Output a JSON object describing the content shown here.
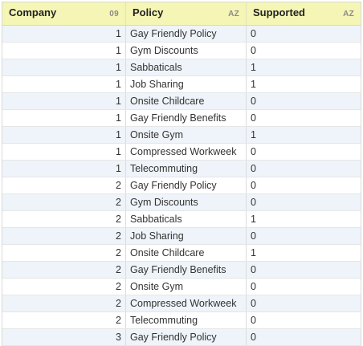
{
  "columns": [
    {
      "label": "Company",
      "type_badge": "09"
    },
    {
      "label": "Policy",
      "type_badge": "AZ"
    },
    {
      "label": "Supported",
      "type_badge": "AZ"
    }
  ],
  "rows": [
    {
      "company": "1",
      "policy": "Gay Friendly Policy",
      "supported": "0"
    },
    {
      "company": "1",
      "policy": "Gym Discounts",
      "supported": "0"
    },
    {
      "company": "1",
      "policy": "Sabbaticals",
      "supported": "1"
    },
    {
      "company": "1",
      "policy": "Job Sharing",
      "supported": "1"
    },
    {
      "company": "1",
      "policy": "Onsite Childcare",
      "supported": "0"
    },
    {
      "company": "1",
      "policy": "Gay Friendly Benefits",
      "supported": "0"
    },
    {
      "company": "1",
      "policy": "Onsite Gym",
      "supported": "1"
    },
    {
      "company": "1",
      "policy": "Compressed Workweek",
      "supported": "0"
    },
    {
      "company": "1",
      "policy": "Telecommuting",
      "supported": "0"
    },
    {
      "company": "2",
      "policy": "Gay Friendly Policy",
      "supported": "0"
    },
    {
      "company": "2",
      "policy": "Gym Discounts",
      "supported": "0"
    },
    {
      "company": "2",
      "policy": "Sabbaticals",
      "supported": "1"
    },
    {
      "company": "2",
      "policy": "Job Sharing",
      "supported": "0"
    },
    {
      "company": "2",
      "policy": "Onsite Childcare",
      "supported": "1"
    },
    {
      "company": "2",
      "policy": "Gay Friendly Benefits",
      "supported": "0"
    },
    {
      "company": "2",
      "policy": "Onsite Gym",
      "supported": "0"
    },
    {
      "company": "2",
      "policy": "Compressed Workweek",
      "supported": "0"
    },
    {
      "company": "2",
      "policy": "Telecommuting",
      "supported": "0"
    },
    {
      "company": "3",
      "policy": "Gay Friendly Policy",
      "supported": "0"
    }
  ],
  "colors": {
    "header_bg": "#f5f5b5",
    "alt_row_bg": "#eef4f9"
  }
}
